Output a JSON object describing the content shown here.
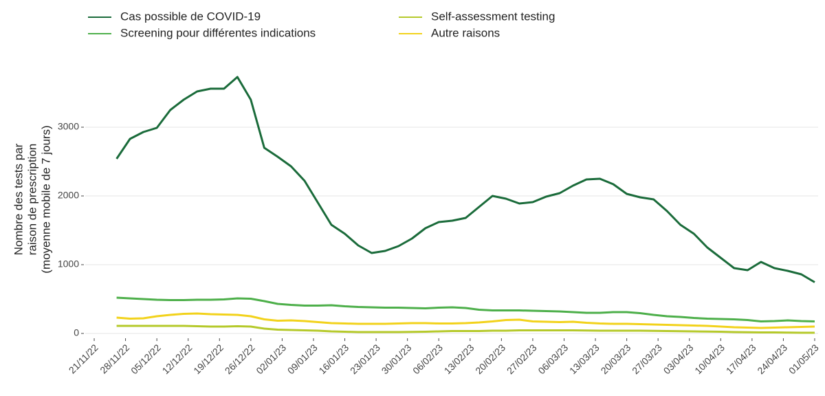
{
  "chart_data": {
    "type": "line",
    "y_label": [
      "Nombre des tests par",
      "raison de prescription",
      "(moyenne mobile de 7 jours)"
    ],
    "x": [
      "2022-11-26",
      "2022-11-29",
      "2022-12-02",
      "2022-12-05",
      "2022-12-08",
      "2022-12-11",
      "2022-12-14",
      "2022-12-17",
      "2022-12-20",
      "2022-12-23",
      "2022-12-26",
      "2022-12-29",
      "2023-01-01",
      "2023-01-04",
      "2023-01-07",
      "2023-01-10",
      "2023-01-13",
      "2023-01-16",
      "2023-01-19",
      "2023-01-22",
      "2023-01-25",
      "2023-01-28",
      "2023-01-31",
      "2023-02-03",
      "2023-02-06",
      "2023-02-09",
      "2023-02-12",
      "2023-02-15",
      "2023-02-18",
      "2023-02-21",
      "2023-02-24",
      "2023-02-27",
      "2023-03-02",
      "2023-03-05",
      "2023-03-08",
      "2023-03-11",
      "2023-03-14",
      "2023-03-17",
      "2023-03-20",
      "2023-03-23",
      "2023-03-26",
      "2023-03-29",
      "2023-04-01",
      "2023-04-04",
      "2023-04-07",
      "2023-04-10",
      "2023-04-13",
      "2023-04-16",
      "2023-04-19",
      "2023-04-22",
      "2023-04-25",
      "2023-04-28",
      "2023-05-01"
    ],
    "series": [
      {
        "name": "Cas possible de COVID-19",
        "color": "#1a6b3a",
        "values": [
          2540,
          2830,
          2930,
          2990,
          3250,
          3400,
          3520,
          3560,
          3560,
          3730,
          3400,
          2700,
          2570,
          2430,
          2220,
          1900,
          1580,
          1450,
          1280,
          1170,
          1200,
          1270,
          1380,
          1530,
          1620,
          1640,
          1680,
          1840,
          2000,
          1960,
          1890,
          1910,
          1990,
          2040,
          2150,
          2240,
          2250,
          2170,
          2030,
          1980,
          1950,
          1780,
          1580,
          1450,
          1250,
          1100,
          950,
          920,
          1040,
          950,
          910,
          860,
          745
        ]
      },
      {
        "name": "Screening pour différentes indications",
        "color": "#4daf4a",
        "values": [
          520,
          510,
          500,
          490,
          485,
          485,
          490,
          490,
          495,
          510,
          505,
          470,
          430,
          415,
          405,
          405,
          410,
          395,
          385,
          380,
          375,
          375,
          370,
          365,
          375,
          380,
          370,
          345,
          335,
          335,
          335,
          330,
          325,
          320,
          310,
          300,
          300,
          310,
          310,
          295,
          270,
          250,
          240,
          225,
          215,
          210,
          205,
          195,
          175,
          180,
          190,
          180,
          175
        ]
      },
      {
        "name": "Self-assessment testing",
        "color": "#b5c92a",
        "values": [
          110,
          110,
          110,
          110,
          110,
          110,
          105,
          100,
          100,
          105,
          100,
          70,
          55,
          50,
          45,
          40,
          30,
          25,
          20,
          20,
          20,
          20,
          22,
          25,
          30,
          35,
          35,
          35,
          40,
          40,
          45,
          45,
          45,
          45,
          45,
          42,
          40,
          40,
          40,
          40,
          38,
          35,
          32,
          30,
          28,
          25,
          20,
          18,
          15,
          15,
          12,
          10,
          10
        ]
      },
      {
        "name": "Autre raisons",
        "color": "#f2d21b",
        "values": [
          230,
          215,
          220,
          250,
          270,
          285,
          290,
          280,
          275,
          270,
          250,
          205,
          185,
          190,
          180,
          165,
          150,
          145,
          140,
          140,
          140,
          145,
          150,
          150,
          145,
          145,
          150,
          160,
          175,
          195,
          200,
          175,
          170,
          165,
          170,
          155,
          145,
          140,
          140,
          135,
          130,
          125,
          120,
          115,
          110,
          100,
          90,
          85,
          80,
          85,
          90,
          95,
          100
        ]
      }
    ],
    "xlim": [
      "2022-11-19",
      "2023-05-01"
    ],
    "xticks": [
      {
        "value": "2022-11-21",
        "label": "21/11/22"
      },
      {
        "value": "2022-11-28",
        "label": "28/11/22"
      },
      {
        "value": "2022-12-05",
        "label": "05/12/22"
      },
      {
        "value": "2022-12-12",
        "label": "12/12/22"
      },
      {
        "value": "2022-12-19",
        "label": "19/12/22"
      },
      {
        "value": "2022-12-26",
        "label": "26/12/22"
      },
      {
        "value": "2023-01-02",
        "label": "02/01/23"
      },
      {
        "value": "2023-01-09",
        "label": "09/01/23"
      },
      {
        "value": "2023-01-16",
        "label": "16/01/23"
      },
      {
        "value": "2023-01-23",
        "label": "23/01/23"
      },
      {
        "value": "2023-01-30",
        "label": "30/01/23"
      },
      {
        "value": "2023-02-06",
        "label": "06/02/23"
      },
      {
        "value": "2023-02-13",
        "label": "13/02/23"
      },
      {
        "value": "2023-02-20",
        "label": "20/02/23"
      },
      {
        "value": "2023-02-27",
        "label": "27/02/23"
      },
      {
        "value": "2023-03-06",
        "label": "06/03/23"
      },
      {
        "value": "2023-03-13",
        "label": "13/03/23"
      },
      {
        "value": "2023-03-20",
        "label": "20/03/23"
      },
      {
        "value": "2023-03-27",
        "label": "27/03/23"
      },
      {
        "value": "2023-04-03",
        "label": "03/04/23"
      },
      {
        "value": "2023-04-10",
        "label": "10/04/23"
      },
      {
        "value": "2023-04-17",
        "label": "17/04/23"
      },
      {
        "value": "2023-04-24",
        "label": "24/04/23"
      },
      {
        "value": "2023-05-01",
        "label": "01/05/23"
      }
    ],
    "ylim": [
      -150,
      3950
    ],
    "yticks": [
      0,
      1000,
      2000,
      3000
    ],
    "grid": true,
    "legend": "top"
  }
}
